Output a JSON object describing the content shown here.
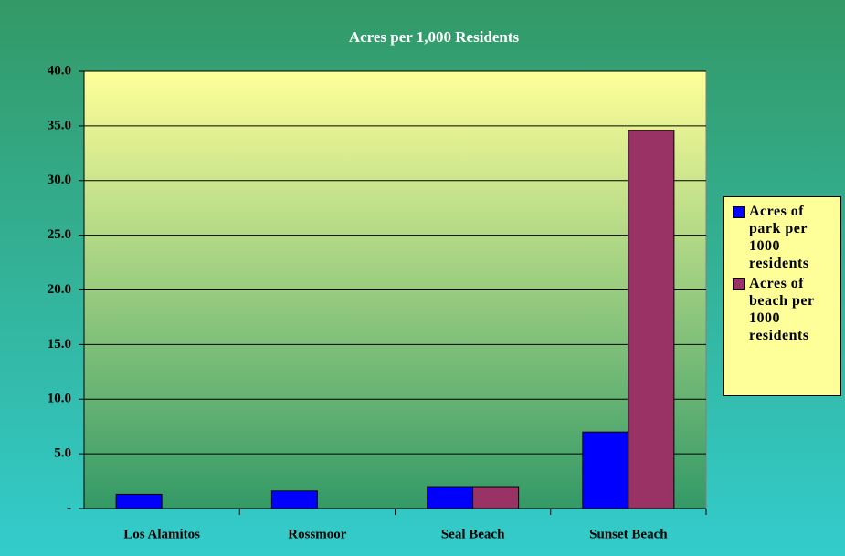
{
  "chart_data": {
    "type": "bar",
    "title": "Acres per 1,000 Residents",
    "categories": [
      "Los Alamitos",
      "Rossmoor",
      "Seal Beach",
      "Sunset Beach"
    ],
    "series": [
      {
        "name": "Acres of park per 1000 residents",
        "color": "#0000ff",
        "values": [
          1.3,
          1.6,
          2.0,
          7.0
        ]
      },
      {
        "name": "Acres of beach per 1000 residents",
        "color": "#993366",
        "values": [
          0,
          0,
          2.0,
          34.6
        ]
      }
    ],
    "ylim": [
      0,
      40
    ],
    "yticks": [
      {
        "value": 0,
        "label": "-"
      },
      {
        "value": 5,
        "label": "5.0"
      },
      {
        "value": 10,
        "label": "10.0"
      },
      {
        "value": 15,
        "label": "15.0"
      },
      {
        "value": 20,
        "label": "20.0"
      },
      {
        "value": 25,
        "label": "25.0"
      },
      {
        "value": 30,
        "label": "30.0"
      },
      {
        "value": 35,
        "label": "35.0"
      },
      {
        "value": 40,
        "label": "40.0"
      }
    ],
    "grid": true,
    "legend": "right"
  }
}
